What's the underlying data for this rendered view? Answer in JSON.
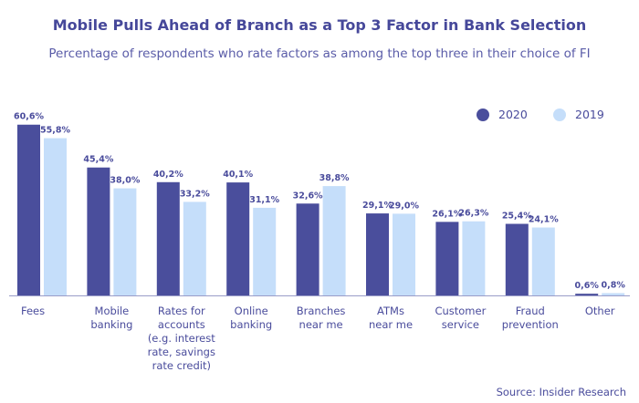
{
  "chart_data": {
    "type": "bar",
    "title": "Mobile Pulls Ahead of Branch as a Top 3 Factor in Bank Selection",
    "subtitle": "Percentage of respondents who rate factors as among the top three in their choice of FI",
    "categories": [
      [
        "Fees"
      ],
      [
        "Mobile",
        "banking"
      ],
      [
        "Rates for",
        "accounts",
        "(e.g. interest",
        "rate, savings",
        "rate credit)"
      ],
      [
        "Online",
        "banking"
      ],
      [
        "Branches",
        "near me"
      ],
      [
        "ATMs",
        "near me"
      ],
      [
        "Customer",
        "service"
      ],
      [
        "Fraud",
        "prevention"
      ],
      [
        "Other"
      ]
    ],
    "series": [
      {
        "name": "2020",
        "color": "#4a4e9c",
        "values": [
          60.6,
          45.4,
          40.2,
          40.1,
          32.6,
          29.1,
          26.1,
          25.4,
          0.6
        ],
        "labels": [
          "60,6%",
          "45,4%",
          "40,2%",
          "40,1%",
          "32,6%",
          "29,1%",
          "26,1%",
          "25,4%",
          "0,6%"
        ]
      },
      {
        "name": "2019",
        "color": "#c5defa",
        "values": [
          55.8,
          38.0,
          33.2,
          31.1,
          38.8,
          29.0,
          26.3,
          24.1,
          0.8
        ],
        "labels": [
          "55,8%",
          "38,0%",
          "33,2%",
          "31,1%",
          "38,8%",
          "29,0%",
          "26,3%",
          "24,1%",
          "0,8%"
        ]
      }
    ],
    "ylim": [
      0,
      65
    ],
    "grid": false,
    "legend_position": "top-right",
    "source": "Source: Insider Research"
  }
}
